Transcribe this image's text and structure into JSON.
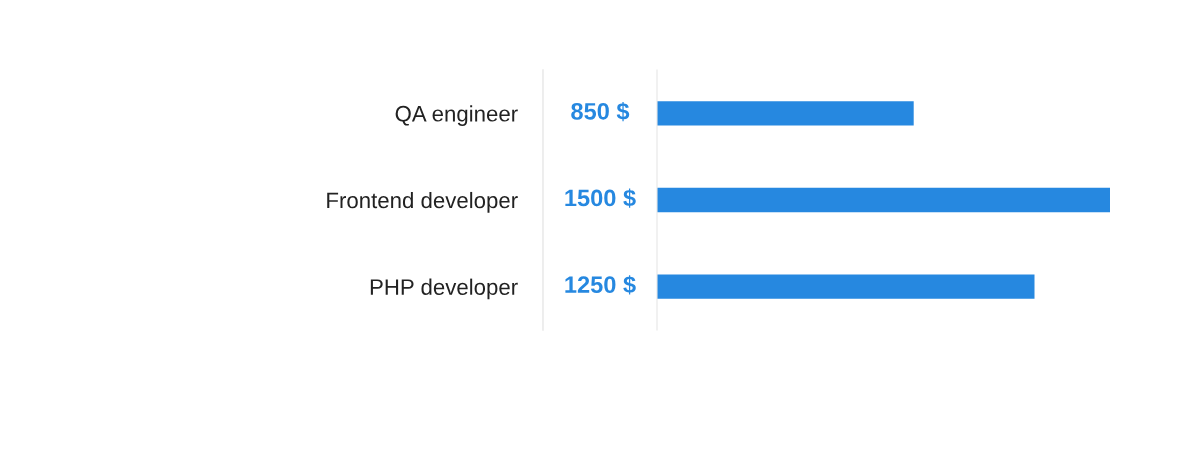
{
  "chart_data": {
    "type": "bar",
    "orientation": "horizontal",
    "categories": [
      "QA engineer",
      "Frontend developer",
      "PHP developer"
    ],
    "values": [
      850,
      1500,
      1250
    ],
    "value_labels": [
      "850 $",
      "1500 $",
      "1250 $"
    ],
    "xlim": [
      0,
      1500
    ],
    "color": "#2688e0",
    "grid": false,
    "legend": false
  }
}
